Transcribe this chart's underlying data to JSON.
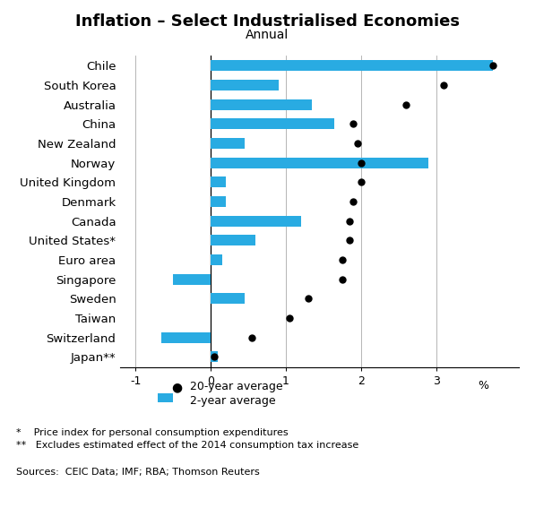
{
  "title": "Inflation – Select Industrialised Economies",
  "subtitle": "Annual",
  "countries": [
    "Chile",
    "South Korea",
    "Australia",
    "China",
    "New Zealand",
    "Norway",
    "United Kingdom",
    "Denmark",
    "Canada",
    "United States*",
    "Euro area",
    "Singapore",
    "Sweden",
    "Taiwan",
    "Switzerland",
    "Japan**"
  ],
  "bar_2yr": [
    3.75,
    0.9,
    1.35,
    1.65,
    0.45,
    2.9,
    0.2,
    0.2,
    1.2,
    0.6,
    0.15,
    -0.5,
    0.45,
    0.0,
    -0.65,
    0.1
  ],
  "dot_20yr": [
    3.75,
    3.1,
    2.6,
    1.9,
    1.95,
    2.0,
    2.0,
    1.9,
    1.85,
    1.85,
    1.75,
    1.75,
    1.3,
    1.05,
    0.55,
    0.05
  ],
  "bar_color": "#29ABE2",
  "dot_color": "#000000",
  "xlim": [
    -1.2,
    4.1
  ],
  "xticks": [
    -1,
    0,
    1,
    2,
    3
  ],
  "xlabel_pct": "%",
  "footnote1": "*    Price index for personal consumption expenditures",
  "footnote2": "**   Excludes estimated effect of the 2014 consumption tax increase",
  "sources": "Sources:  CEIC Data; IMF; RBA; Thomson Reuters",
  "legend_dot": "20-year average",
  "legend_bar": "2-year average",
  "background_color": "#ffffff",
  "title_fontsize": 13,
  "subtitle_fontsize": 10,
  "tick_fontsize": 9,
  "ylabel_fontsize": 9.5,
  "footnote_fontsize": 8,
  "bar_height": 0.55
}
